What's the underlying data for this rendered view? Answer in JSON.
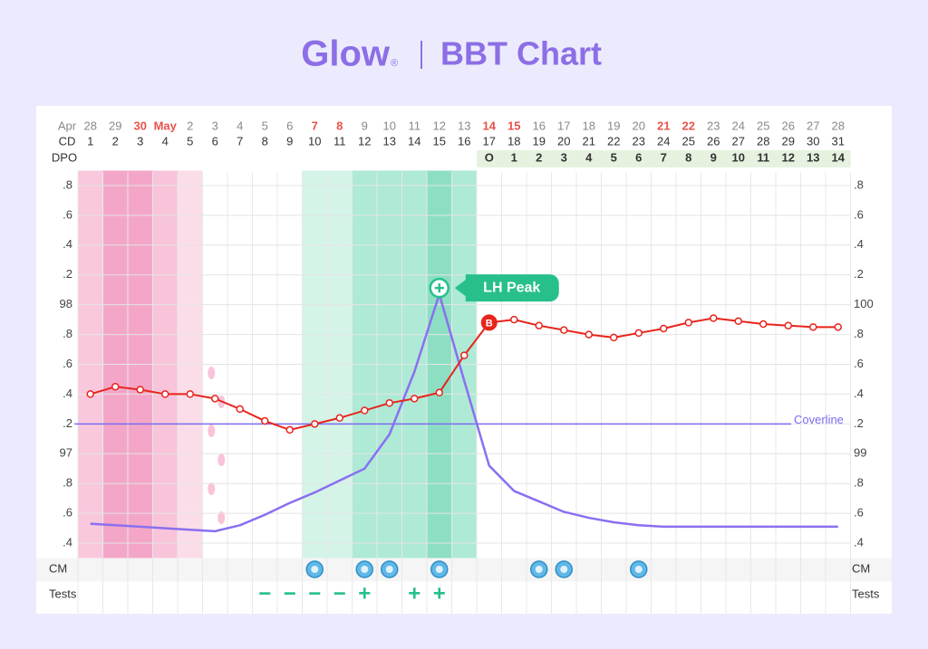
{
  "chart_data": {
    "type": "line",
    "brand": "Glow",
    "brand_mark": "®",
    "title": "BBT Chart",
    "row_labels": {
      "date": "Apr",
      "cd": "CD",
      "dpo": "DPO",
      "cm": "CM",
      "tests": "Tests"
    },
    "dates": [
      "28",
      "29",
      "30",
      "May",
      "2",
      "3",
      "4",
      "5",
      "6",
      "7",
      "8",
      "9",
      "10",
      "11",
      "12",
      "13",
      "14",
      "15",
      "16",
      "17",
      "18",
      "19",
      "20",
      "21",
      "22",
      "23",
      "24",
      "25",
      "26",
      "27",
      "28"
    ],
    "date_colors": [
      "#888",
      "#888",
      "#e8524a",
      "#e8524a",
      "#888",
      "#888",
      "#888",
      "#888",
      "#888",
      "#e8524a",
      "#e8524a",
      "#888",
      "#888",
      "#888",
      "#888",
      "#888",
      "#e8524a",
      "#e8524a",
      "#888",
      "#888",
      "#888",
      "#888",
      "#888",
      "#e8524a",
      "#e8524a",
      "#888",
      "#888",
      "#888",
      "#888",
      "#888",
      "#888"
    ],
    "categories": [
      1,
      2,
      3,
      4,
      5,
      6,
      7,
      8,
      9,
      10,
      11,
      12,
      13,
      14,
      15,
      16,
      17,
      18,
      19,
      20,
      21,
      22,
      23,
      24,
      25,
      26,
      27,
      28,
      29,
      30,
      31
    ],
    "dpo": [
      null,
      null,
      null,
      null,
      null,
      null,
      null,
      null,
      null,
      null,
      null,
      null,
      null,
      null,
      null,
      null,
      "O",
      1,
      2,
      3,
      4,
      5,
      6,
      7,
      8,
      9,
      10,
      11,
      12,
      13,
      14
    ],
    "series": [
      {
        "color": "#e8241c",
        "values": [
          97.4,
          97.45,
          97.43,
          97.4,
          97.4,
          97.37,
          97.3,
          97.22,
          97.16,
          97.2,
          97.24,
          97.29,
          97.34,
          97.37,
          97.41,
          97.66,
          97.88,
          97.9,
          97.86,
          97.83,
          97.8,
          97.78,
          97.81,
          97.84,
          97.88,
          97.91,
          97.89,
          97.87,
          97.86,
          97.85,
          97.85
        ]
      },
      {
        "color": "#8b6ff0",
        "values": [
          96.53,
          96.52,
          96.51,
          96.5,
          96.49,
          96.48,
          96.52,
          96.59,
          96.67,
          96.74,
          96.82,
          96.9,
          97.13,
          97.55,
          98.07,
          97.49,
          96.92,
          96.75,
          96.68,
          96.61,
          96.57,
          96.54,
          96.52,
          96.51,
          96.51,
          96.51,
          96.51,
          96.51,
          96.51,
          96.51,
          96.51
        ]
      }
    ],
    "coverline": {
      "value": 97.2,
      "label": "Coverline",
      "color": "#7b6cf0"
    },
    "lh_peak": {
      "label": "LH Peak",
      "index": 14,
      "color": "#27c08a"
    },
    "bbt_marker": {
      "label": "B",
      "index": 16
    },
    "tests": [
      null,
      null,
      null,
      null,
      null,
      null,
      null,
      "−",
      "−",
      "−",
      "−",
      "+",
      null,
      "+",
      "+",
      null,
      null,
      null,
      null,
      null,
      null,
      null,
      null,
      null,
      null,
      null,
      null,
      null,
      null,
      null,
      null
    ],
    "ylim": [
      96.3,
      98.9
    ],
    "yticks": [
      {
        "value": 96.4,
        "label": ".4"
      },
      {
        "value": 96.6,
        "label": ".6"
      },
      {
        "value": 96.8,
        "label": ".8"
      },
      97,
      {
        "value": 97.2,
        "label": ".2"
      },
      {
        "value": 97.4,
        "label": ".4"
      },
      {
        "value": 97.6,
        "label": ".6"
      },
      {
        "value": 97.8,
        "label": ".8"
      },
      98,
      {
        "value": 98.2,
        "label": ".2"
      },
      {
        "value": 98.4,
        "label": ".4"
      },
      {
        "value": 98.6,
        "label": ".6"
      },
      {
        "value": 98.8,
        "label": ".8"
      }
    ],
    "y2lim": [
      98.3,
      100.9
    ],
    "y2ticks": [
      {
        "value": 98.4,
        "label": ".4"
      },
      {
        "value": 98.6,
        "label": ".6"
      },
      {
        "value": 98.8,
        "label": ".8"
      },
      99,
      {
        "value": 99.2,
        "label": ".2"
      },
      {
        "value": 99.4,
        "label": ".4"
      },
      {
        "value": 99.6,
        "label": ".6"
      },
      {
        "value": 99.8,
        "label": ".8"
      },
      100,
      {
        "value": 100.2,
        "label": ".2"
      },
      {
        "value": 100.4,
        "label": ".4"
      },
      {
        "value": 100.6,
        "label": ".6"
      },
      {
        "value": 100.8,
        "label": ".8"
      }
    ],
    "grid": true
  }
}
